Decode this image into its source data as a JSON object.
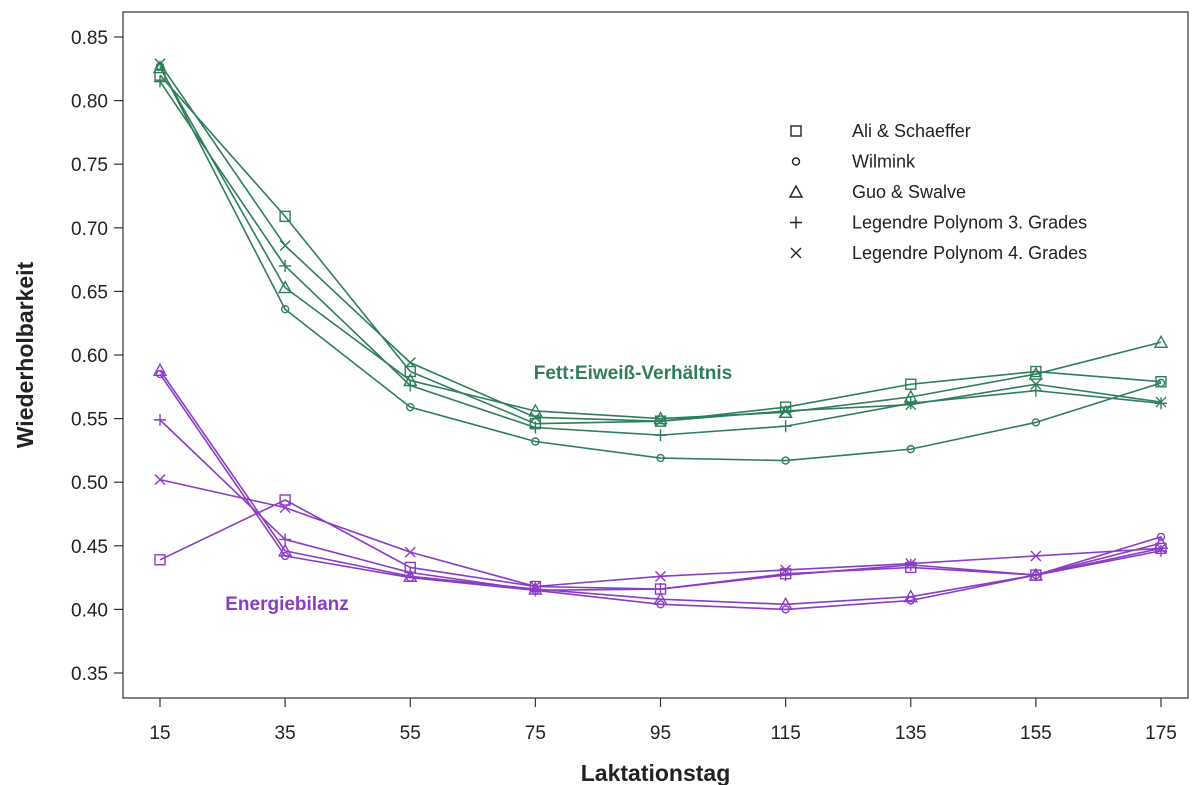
{
  "chart_data": {
    "type": "line",
    "xlabel": "Laktationstag",
    "ylabel": "Wiederholbarkeit",
    "x": [
      15,
      35,
      55,
      75,
      95,
      115,
      135,
      155,
      175
    ],
    "xlim": [
      15,
      175
    ],
    "ylim": [
      0.35,
      0.85
    ],
    "yticks": [
      "0.35",
      "0.40",
      "0.45",
      "0.50",
      "0.55",
      "0.60",
      "0.65",
      "0.70",
      "0.75",
      "0.80",
      "0.85"
    ],
    "grid": false,
    "legend_position": "top-right",
    "legend": [
      {
        "name": "Ali & Schaeffer",
        "marker": "square"
      },
      {
        "name": "Wilmink",
        "marker": "circle"
      },
      {
        "name": "Guo & Swalve",
        "marker": "triangle"
      },
      {
        "name": "Legendre Polynom 3. Grades",
        "marker": "plus"
      },
      {
        "name": "Legendre Polynom 4. Grades",
        "marker": "x"
      }
    ],
    "groups": [
      {
        "label": "Fett:Eiweiß-Verhältnis",
        "color": "#2e7d5b",
        "series": [
          {
            "name": "Ali & Schaeffer",
            "marker": "square",
            "values": [
              0.82,
              0.709,
              0.587,
              0.546,
              0.548,
              0.559,
              0.577,
              0.587,
              0.579
            ]
          },
          {
            "name": "Wilmink",
            "marker": "circle",
            "values": [
              0.827,
              0.636,
              0.559,
              0.532,
              0.519,
              0.517,
              0.526,
              0.547,
              0.578
            ]
          },
          {
            "name": "Guo & Swalve",
            "marker": "triangle",
            "values": [
              0.826,
              0.653,
              0.58,
              0.556,
              0.55,
              0.555,
              0.567,
              0.585,
              0.61
            ]
          },
          {
            "name": "Legendre Polynom 3. Grades",
            "marker": "plus",
            "values": [
              0.815,
              0.67,
              0.576,
              0.543,
              0.537,
              0.544,
              0.562,
              0.572,
              0.562
            ]
          },
          {
            "name": "Legendre Polynom 4. Grades",
            "marker": "x",
            "values": [
              0.829,
              0.686,
              0.594,
              0.551,
              0.548,
              0.556,
              0.561,
              0.577,
              0.563
            ]
          }
        ]
      },
      {
        "label": "Energiebilanz",
        "color": "#8a3cc4",
        "series": [
          {
            "name": "Ali & Schaeffer",
            "marker": "square",
            "values": [
              0.439,
              0.486,
              0.433,
              0.418,
              0.416,
              0.428,
              0.433,
              0.427,
              0.448
            ]
          },
          {
            "name": "Wilmink",
            "marker": "circle",
            "values": [
              0.585,
              0.442,
              0.425,
              0.415,
              0.404,
              0.4,
              0.407,
              0.427,
              0.457
            ]
          },
          {
            "name": "Guo & Swalve",
            "marker": "triangle",
            "values": [
              0.588,
              0.446,
              0.426,
              0.416,
              0.408,
              0.404,
              0.41,
              0.427,
              0.452
            ]
          },
          {
            "name": "Legendre Polynom 3. Grades",
            "marker": "plus",
            "values": [
              0.549,
              0.455,
              0.429,
              0.415,
              0.416,
              0.427,
              0.435,
              0.427,
              0.446
            ]
          },
          {
            "name": "Legendre Polynom 4. Grades",
            "marker": "x",
            "values": [
              0.502,
              0.48,
              0.445,
              0.418,
              0.426,
              0.431,
              0.436,
              0.442,
              0.448
            ]
          }
        ]
      }
    ]
  }
}
